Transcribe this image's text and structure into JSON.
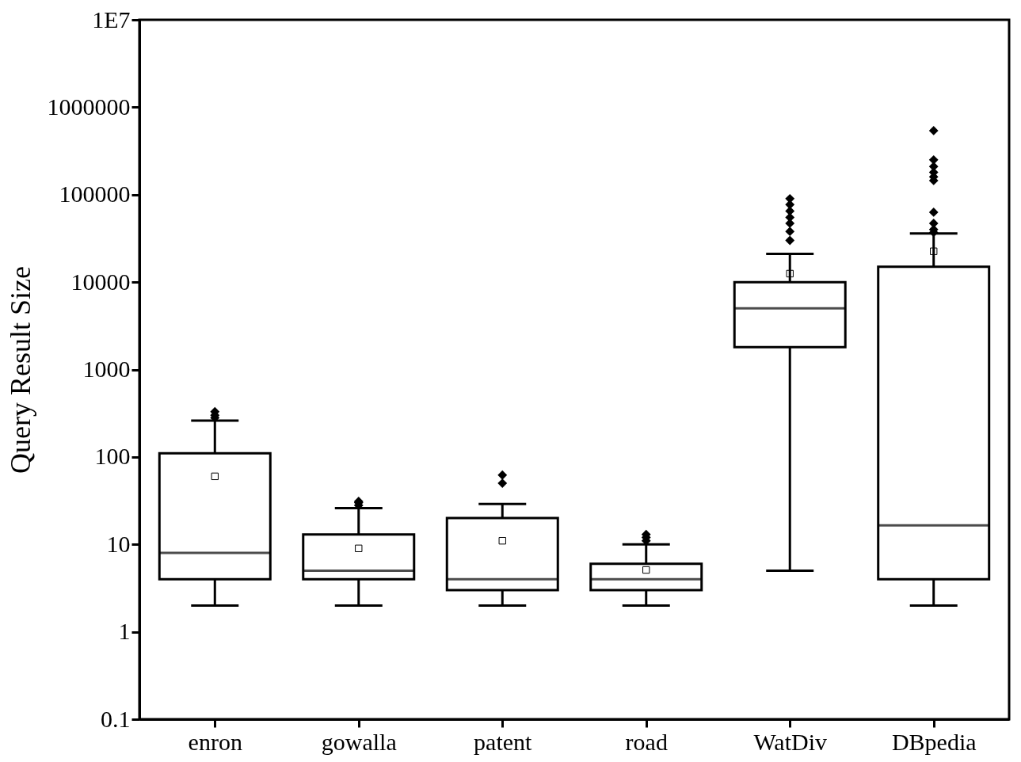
{
  "chart_data": {
    "type": "box",
    "ylabel": "Query Result Size",
    "categories": [
      "enron",
      "gowalla",
      "patent",
      "road",
      "WatDiv",
      "DBpedia"
    ],
    "boxes": [
      {
        "low": 2,
        "q1": 4,
        "median": 8,
        "q3": 110,
        "high": 260,
        "mean": 60,
        "outliers": [
          280,
          300,
          330
        ]
      },
      {
        "low": 2,
        "q1": 4,
        "median": 5,
        "q3": 13,
        "high": 26,
        "mean": 9,
        "outliers": [
          28,
          30,
          31
        ]
      },
      {
        "low": 2,
        "q1": 3,
        "median": 4,
        "q3": 20,
        "high": 29,
        "mean": 11,
        "outliers": [
          50,
          62
        ]
      },
      {
        "low": 2,
        "q1": 3,
        "median": 4,
        "q3": 6,
        "high": 10,
        "mean": 5.1,
        "outliers": [
          11,
          12,
          13
        ]
      },
      {
        "low": 5,
        "q1": 1800,
        "median": 5000,
        "q3": 10000,
        "high": 21000,
        "mean": 12500,
        "outliers": [
          30000,
          38000,
          47000,
          55000,
          65000,
          77000,
          90000
        ]
      },
      {
        "low": 2,
        "q1": 4,
        "median": 16.5,
        "q3": 15000,
        "high": 36000,
        "mean": 22500,
        "outliers": [
          37000,
          40000,
          47000,
          63000,
          145000,
          160000,
          180000,
          210000,
          250000,
          540000
        ]
      }
    ],
    "log": "y",
    "ylim": [
      0.1,
      10000000
    ],
    "yticks": [
      0.1,
      1,
      10,
      100,
      1000,
      10000,
      100000,
      1000000,
      {
        "value": 10000000,
        "label": "1E7"
      }
    ],
    "grid": false
  }
}
